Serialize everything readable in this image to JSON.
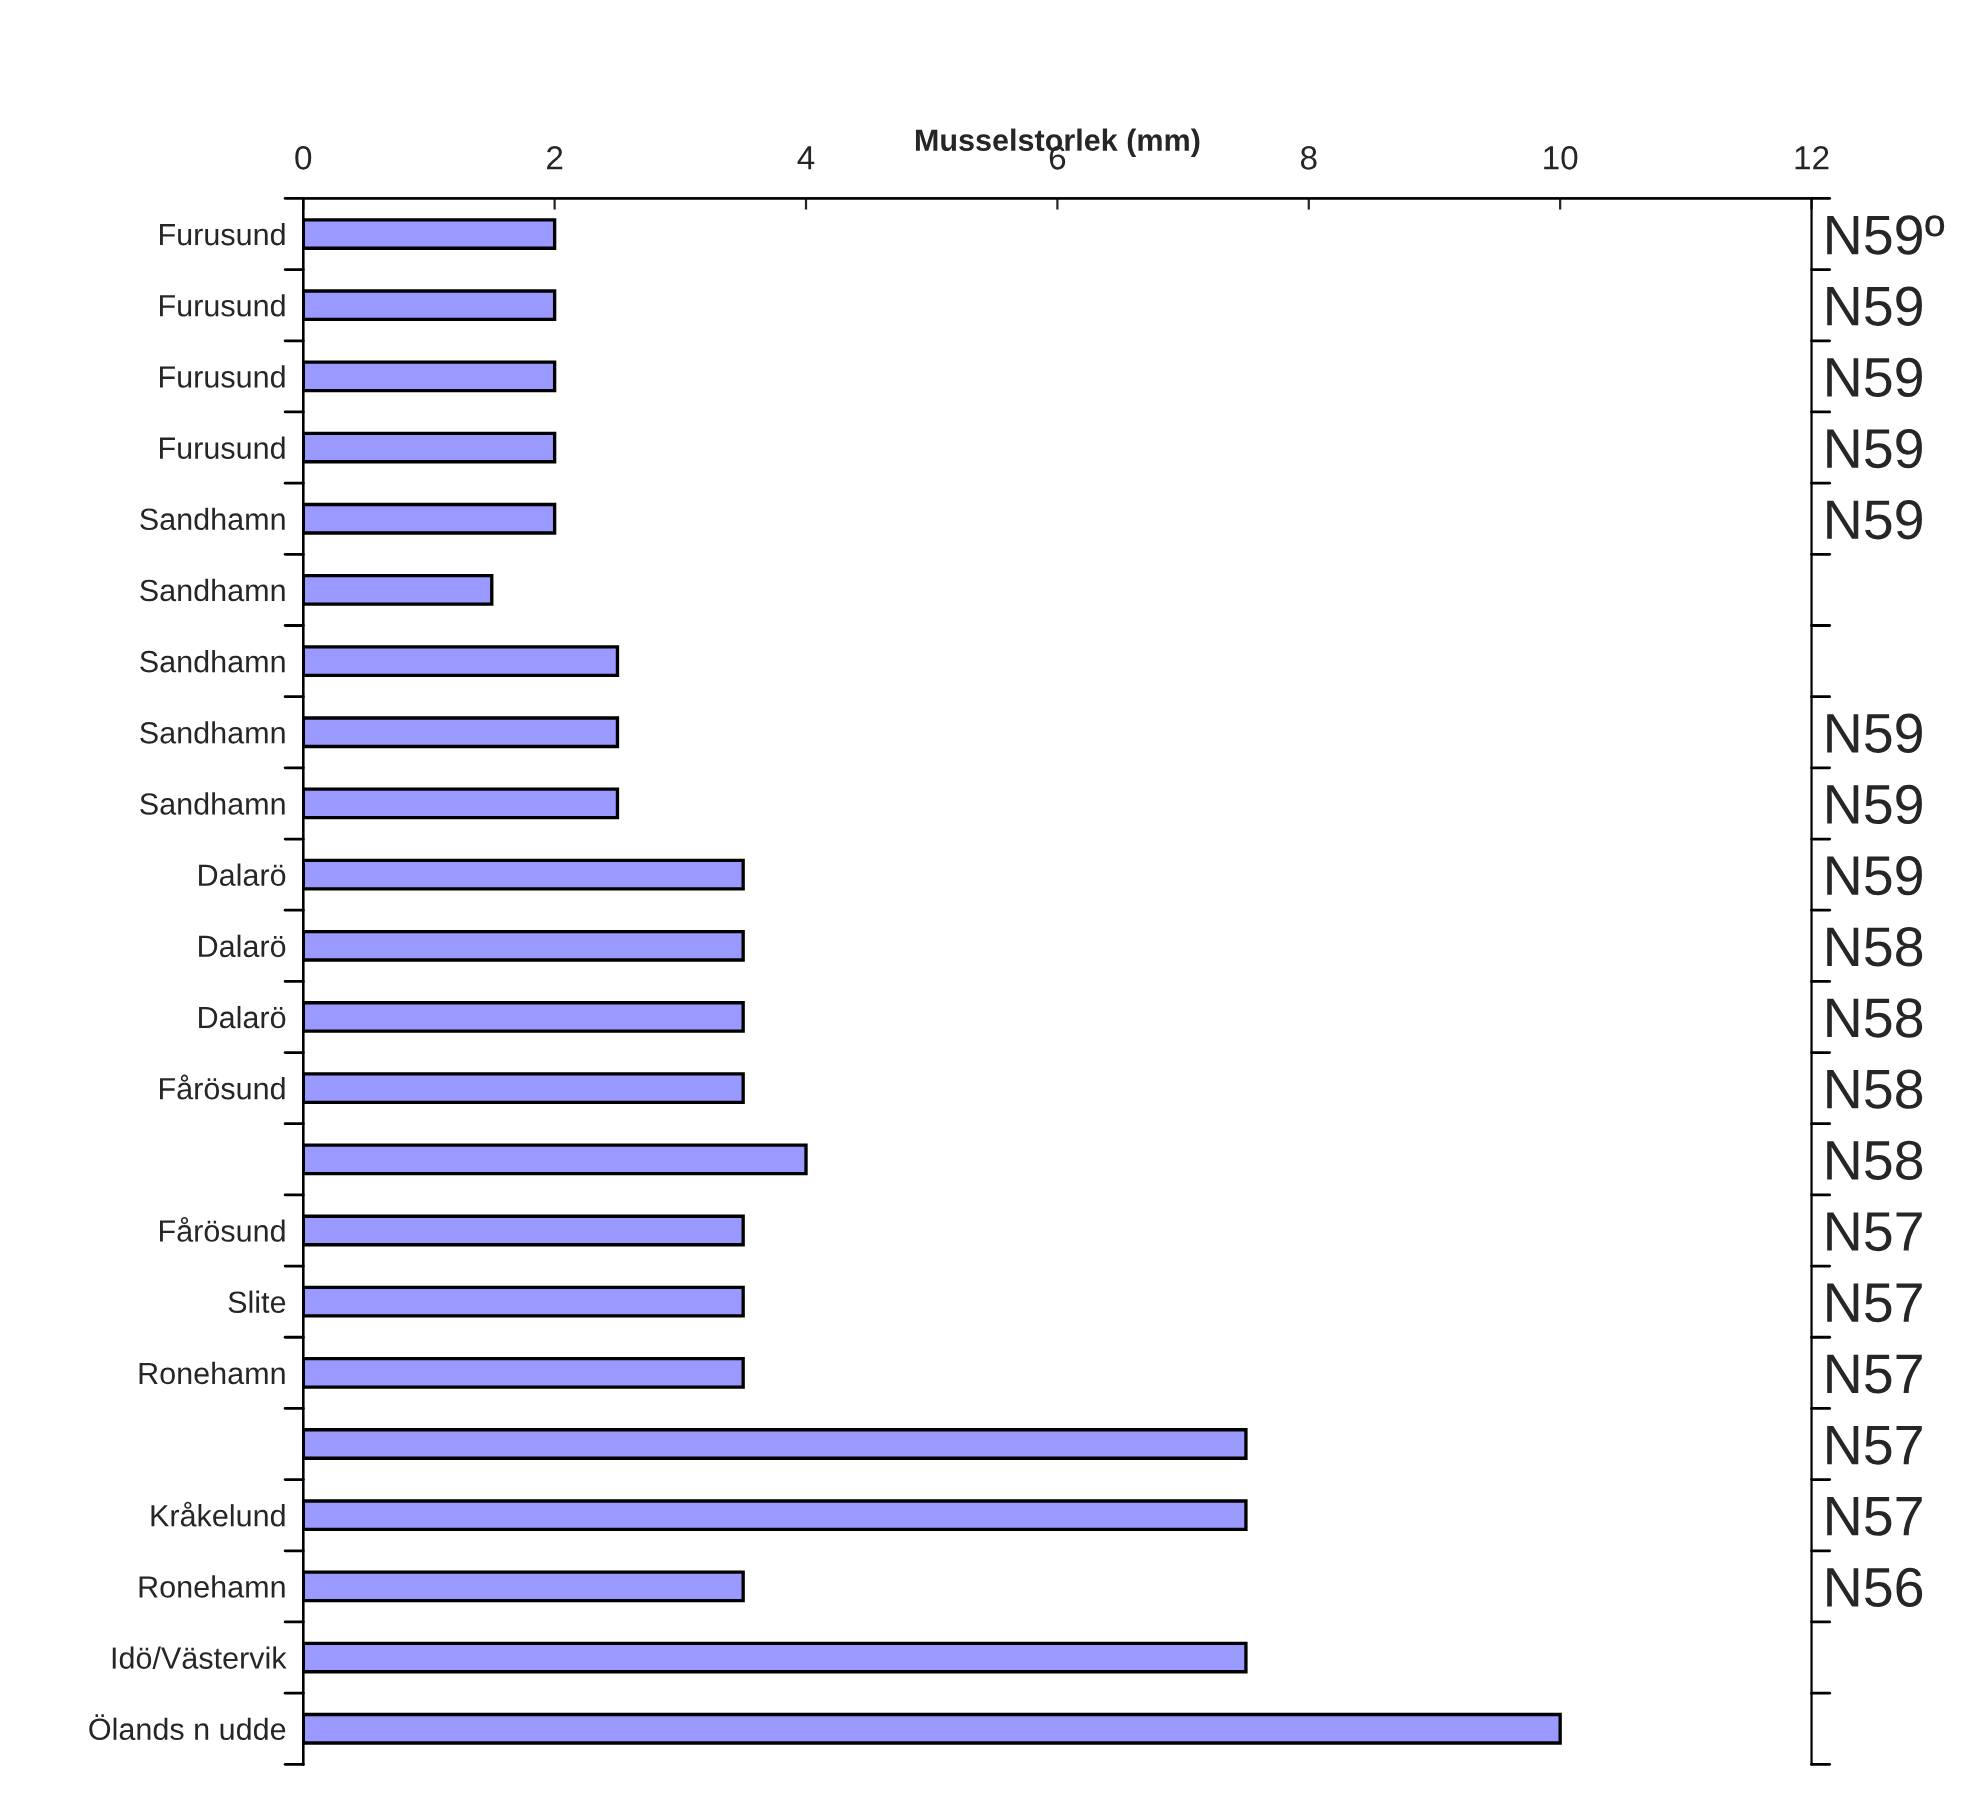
{
  "chart_data": {
    "type": "bar",
    "orientation": "horizontal",
    "xlabel": "Musselstorlek (mm)",
    "categories": [
      "Furusund",
      "Furusund",
      "Furusund",
      "Furusund",
      "Sandhamn",
      "Sandhamn",
      "Sandhamn",
      "Sandhamn",
      "Sandhamn",
      "Dalarö",
      "Dalarö",
      "Dalarö",
      "Fårösund",
      null,
      "Fårösund",
      "Slite",
      "Ronehamn",
      null,
      "Kråkelund",
      "Ronehamn",
      "Idö/Västervik",
      "Ölands n udde"
    ],
    "y2_categories": [
      "N59º",
      "N59",
      "N59",
      "N59",
      "N59",
      null,
      null,
      "N59",
      "N59",
      "N59",
      "N58",
      "N58",
      "N58",
      "N58",
      "N57",
      "N57",
      "N57",
      "N57",
      "N57",
      "N56",
      null,
      null
    ],
    "values": [
      2,
      2,
      2,
      2,
      2,
      1.5,
      2.5,
      2.5,
      2.5,
      3.5,
      3.5,
      3.5,
      3.5,
      4,
      3.5,
      3.5,
      3.5,
      7.5,
      7.5,
      3.5,
      7.5,
      10
    ],
    "color": "#9999ff",
    "xlim": [
      0,
      12
    ],
    "xticks": [
      0,
      2,
      4,
      6,
      8,
      10,
      12
    ],
    "grid": false,
    "legend": false
  }
}
